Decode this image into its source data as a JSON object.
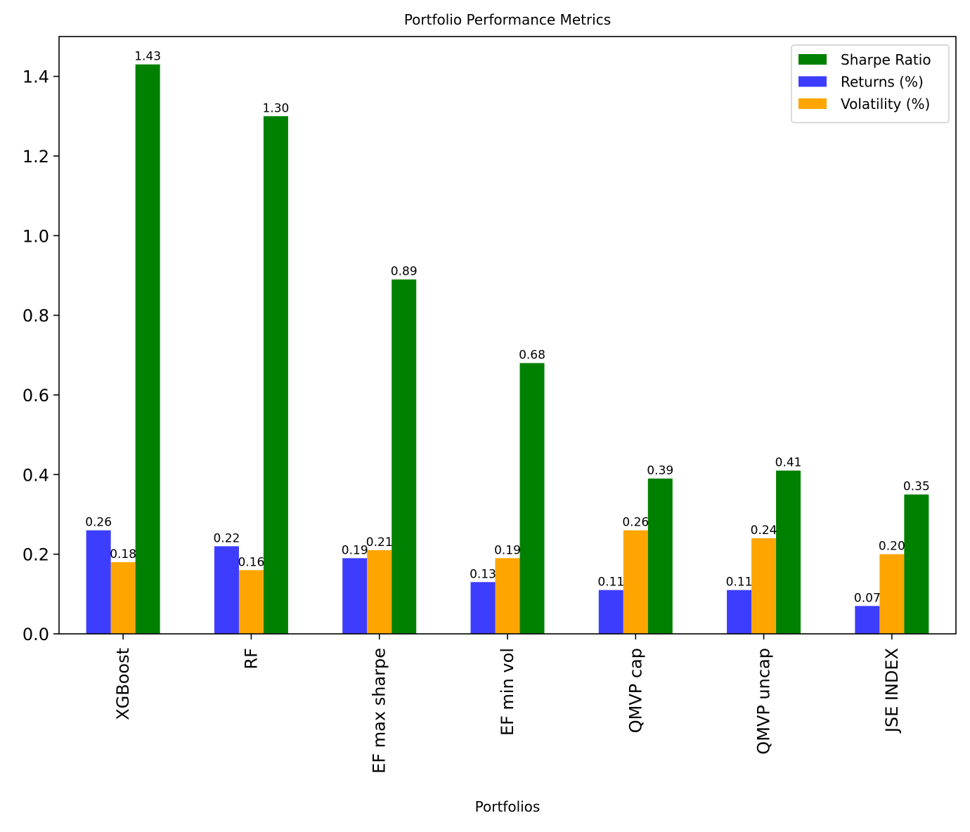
{
  "chart_data": {
    "type": "bar",
    "title": "Portfolio Performance Metrics",
    "xlabel": "Portfolios",
    "ylabel": "",
    "ylim": [
      0,
      1.5
    ],
    "yticks": [
      "0.0",
      "0.2",
      "0.4",
      "0.6",
      "0.8",
      "1.0",
      "1.2",
      "1.4"
    ],
    "categories": [
      "XGBoost",
      "RF",
      "EF max sharpe",
      "EF min vol",
      "QMVP cap",
      "QMVP uncap",
      "JSE INDEX"
    ],
    "series": [
      {
        "name": "Returns (%)",
        "color": "#3d3dff",
        "values": [
          0.26,
          0.22,
          0.19,
          0.13,
          0.11,
          0.11,
          0.07
        ],
        "labels": [
          "0.26",
          "0.22",
          "0.19",
          "0.13",
          "0.11",
          "0.11",
          "0.07"
        ]
      },
      {
        "name": "Volatility (%)",
        "color": "#ffa500",
        "values": [
          0.18,
          0.16,
          0.21,
          0.19,
          0.26,
          0.24,
          0.2
        ],
        "labels": [
          "0.18",
          "0.16",
          "0.21",
          "0.19",
          "0.26",
          "0.24",
          "0.20"
        ]
      },
      {
        "name": "Sharpe Ratio",
        "color": "#008000",
        "values": [
          1.43,
          1.3,
          0.89,
          0.68,
          0.39,
          0.41,
          0.35
        ],
        "labels": [
          "1.43",
          "1.30",
          "0.89",
          "0.68",
          "0.39",
          "0.41",
          "0.35"
        ]
      }
    ],
    "legend": {
      "placement": "top-right",
      "order": [
        "Sharpe Ratio",
        "Returns (%)",
        "Volatility (%)"
      ]
    },
    "grid": false
  }
}
